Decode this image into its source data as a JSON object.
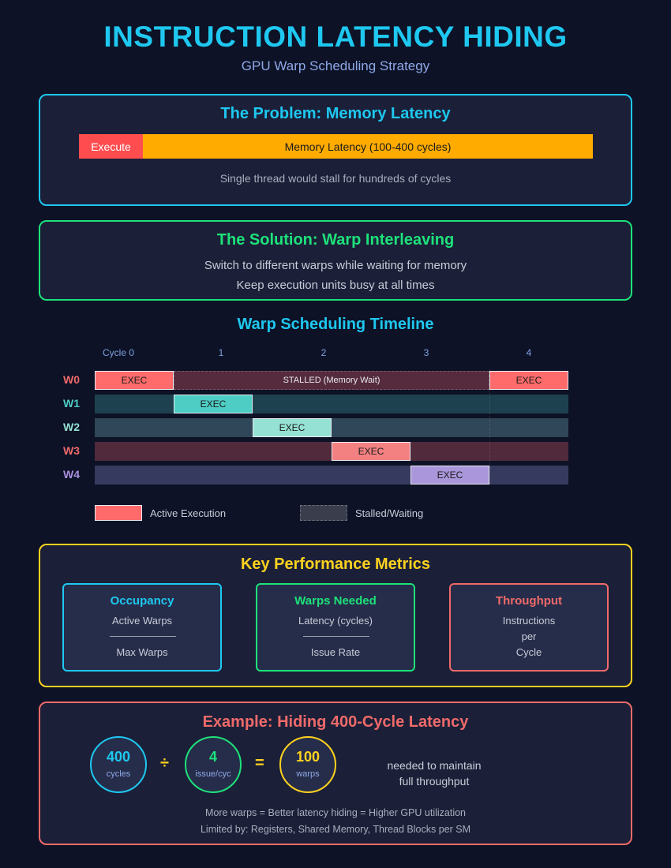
{
  "title": "INSTRUCTION LATENCY HIDING",
  "subtitle": "GPU Warp Scheduling Strategy",
  "colors": {
    "cyan": "#1ec8f0",
    "green": "#1de27a",
    "yellow": "#ffd21f",
    "red": "#f06a6a",
    "teal": "#4ecdc4",
    "mint": "#95e1d3",
    "purple": "#a990dd"
  },
  "problem": {
    "title": "The Problem: Memory Latency",
    "execute_label": "Execute",
    "memory_label": "Memory Latency (100-400 cycles)",
    "caption": "Single thread would stall for hundreds of cycles"
  },
  "solution": {
    "title": "The Solution: Warp Interleaving",
    "line1": "Switch to different warps while waiting for memory",
    "line2": "Keep execution units busy at all times"
  },
  "timeline": {
    "title": "Warp Scheduling Timeline",
    "cycles": [
      "Cycle 0",
      "1",
      "2",
      "3",
      "4"
    ],
    "warps": [
      {
        "label": "W0",
        "color": "#f06a6a"
      },
      {
        "label": "W1",
        "color": "#4ecdc4"
      },
      {
        "label": "W2",
        "color": "#95e1d3"
      },
      {
        "label": "W3",
        "color": "#f06a6a"
      },
      {
        "label": "W4",
        "color": "#a990dd"
      }
    ],
    "exec_label": "EXEC",
    "stalled_label": "STALLED (Memory Wait)",
    "legend_active": "Active Execution",
    "legend_stalled": "Stalled/Waiting"
  },
  "metrics": {
    "title": "Key Performance Metrics",
    "occupancy": {
      "title": "Occupancy",
      "numerator": "Active Warps",
      "denominator": "Max Warps"
    },
    "warps_needed": {
      "title": "Warps Needed",
      "numerator": "Latency (cycles)",
      "denominator": "Issue Rate"
    },
    "throughput": {
      "title": "Throughput",
      "line1": "Instructions",
      "line2": "per",
      "line3": "Cycle"
    }
  },
  "example": {
    "title": "Example: Hiding 400-Cycle Latency",
    "latency_value": "400",
    "latency_unit": "cycles",
    "divide_op": "÷",
    "issue_value": "4",
    "issue_unit": "issue/cyc",
    "equals_op": "=",
    "result_value": "100",
    "result_unit": "warps",
    "result_note_1": "needed to maintain",
    "result_note_2": "full throughput",
    "footer_1": "More warps = Better latency hiding = Higher GPU utilization",
    "footer_2": "Limited by: Registers, Shared Memory, Thread Blocks per SM"
  }
}
